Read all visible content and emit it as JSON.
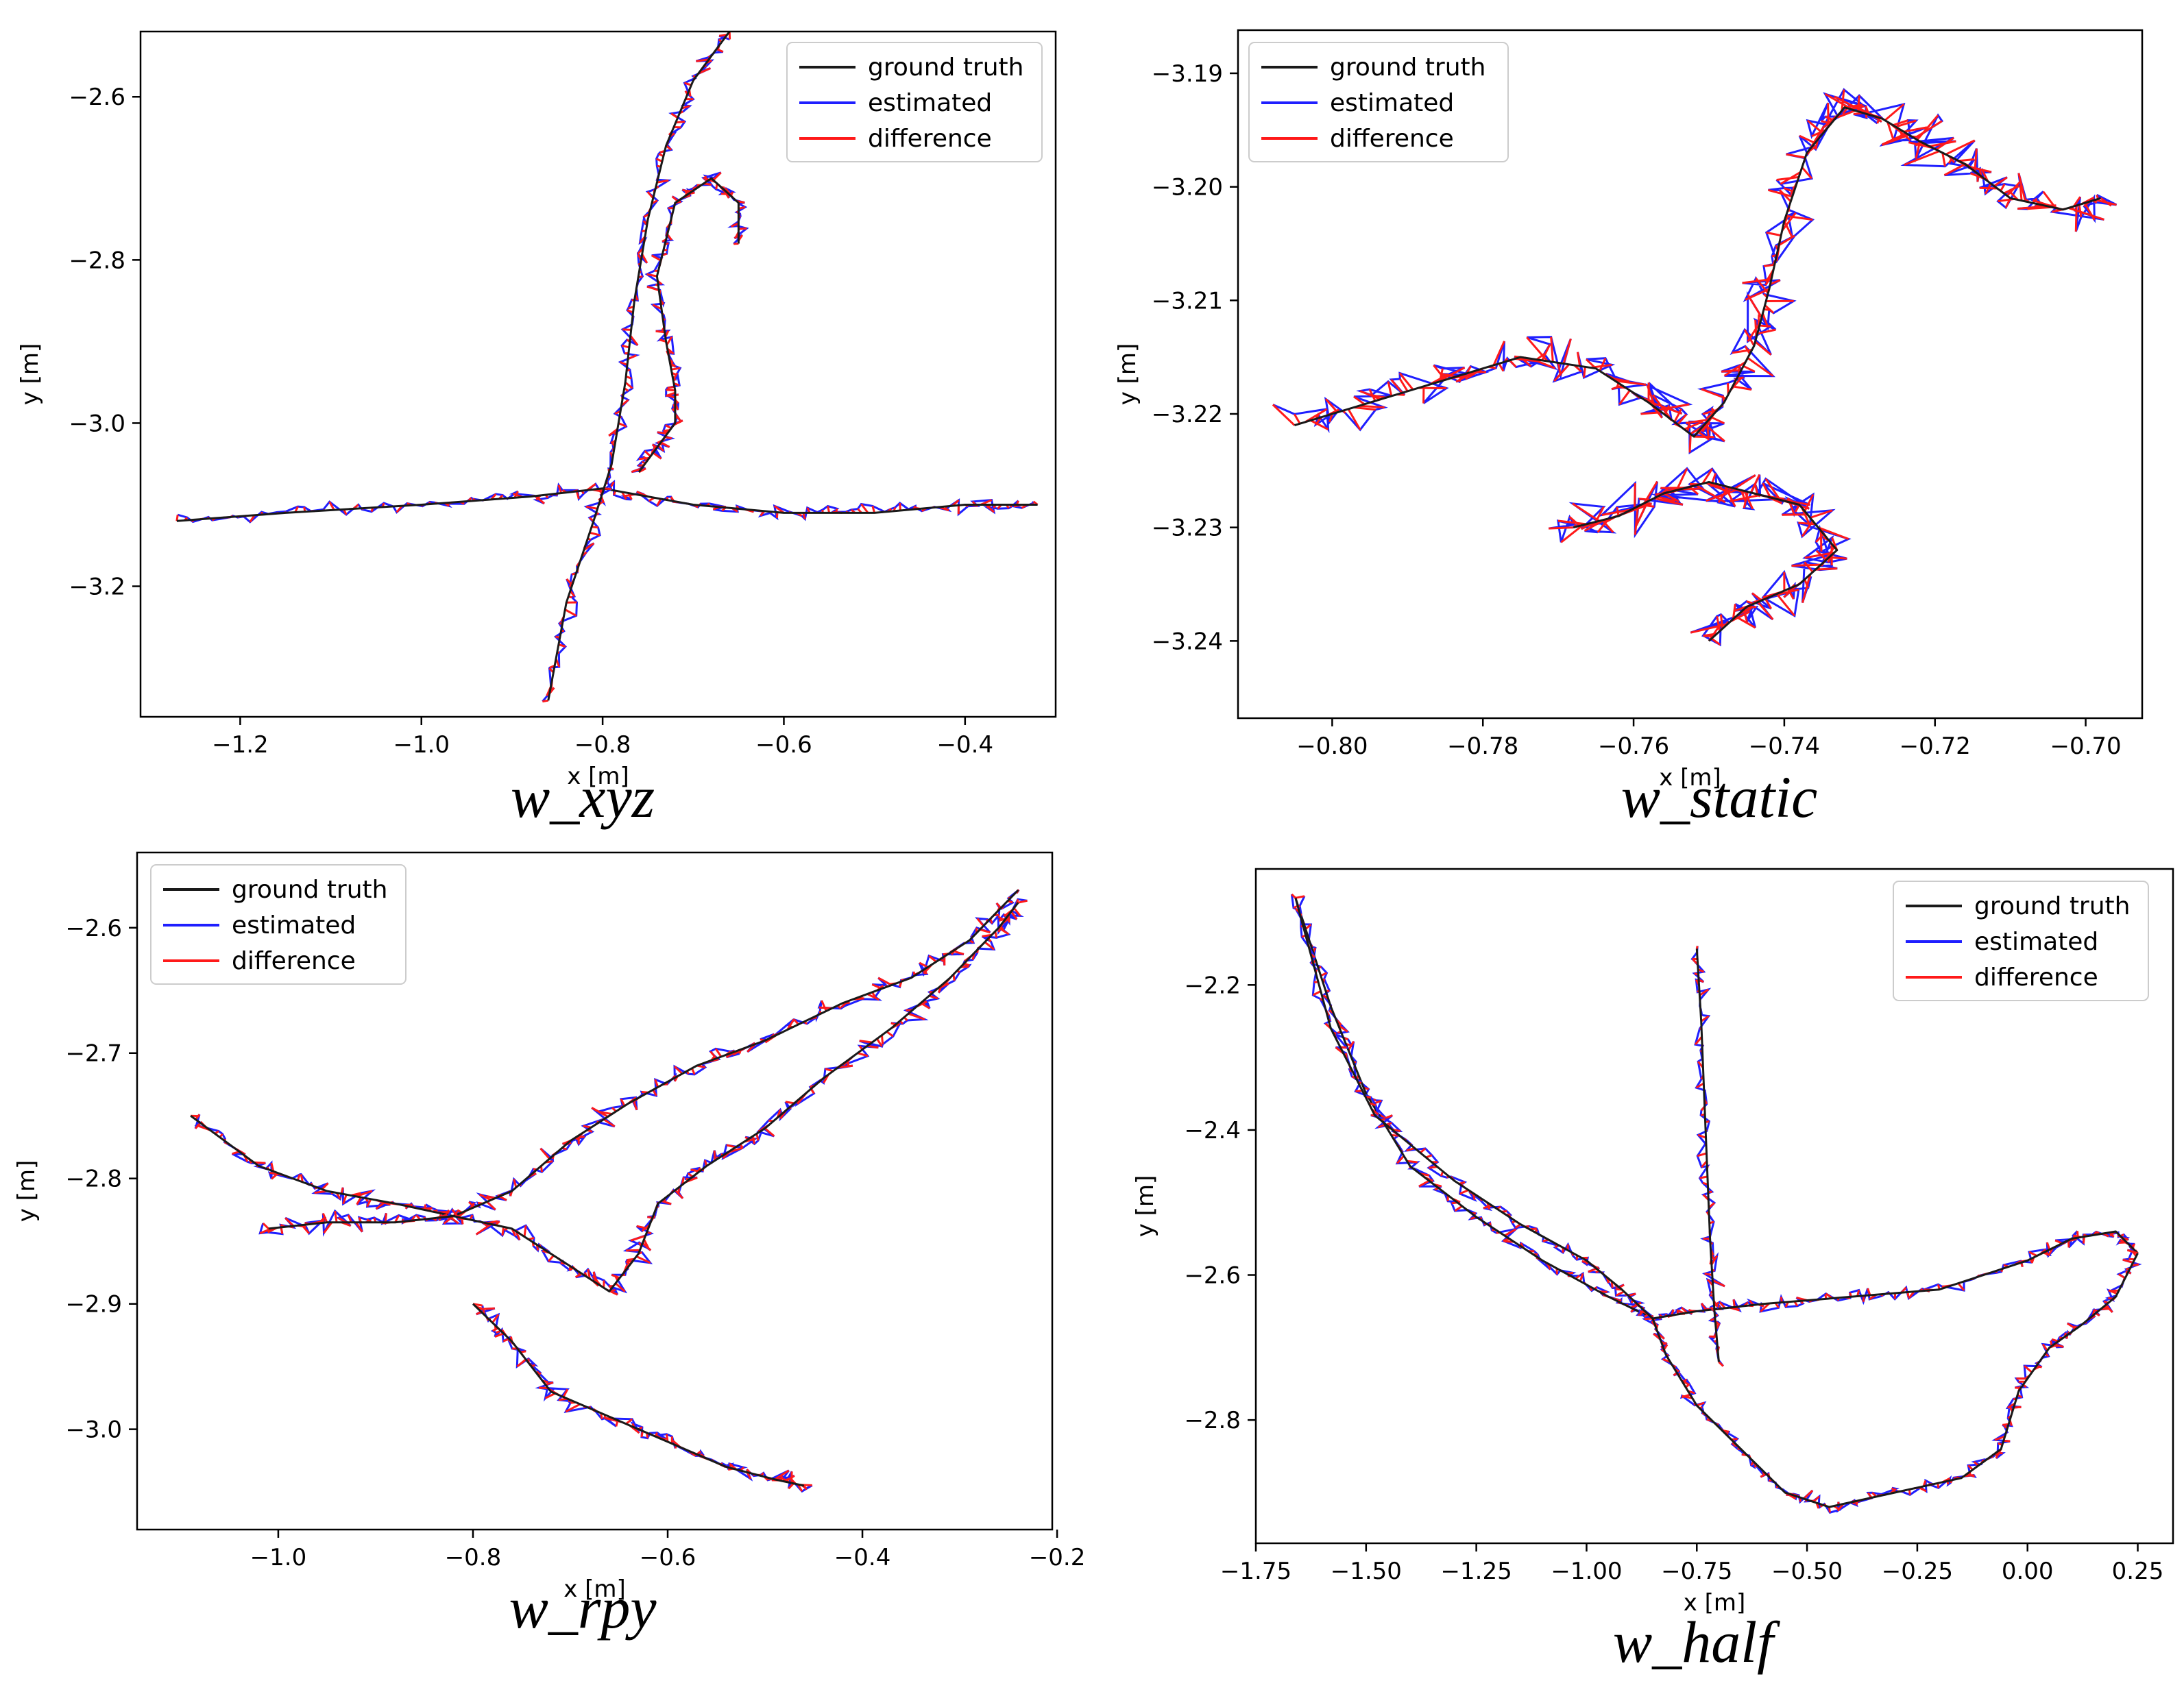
{
  "figure": {
    "legend_entries": [
      {
        "name": "ground truth",
        "color": "#1a1a1a"
      },
      {
        "name": "estimated",
        "color": "#1f1fff"
      },
      {
        "name": "difference",
        "color": "#ff1a1a"
      }
    ]
  },
  "chart_data": [
    {
      "type": "line",
      "id": "xyz",
      "caption": "w_xyz",
      "xlabel": "x [m]",
      "ylabel": "y [m]",
      "xlim": [
        -1.31,
        -0.3
      ],
      "ylim": [
        -3.36,
        -2.52
      ],
      "xticks": [
        {
          "v": -1.2,
          "label": "−1.2"
        },
        {
          "v": -1.0,
          "label": "−1.0"
        },
        {
          "v": -0.8,
          "label": "−0.8"
        },
        {
          "v": -0.6,
          "label": "−0.6"
        },
        {
          "v": -0.4,
          "label": "−0.4"
        }
      ],
      "yticks": [
        {
          "v": -2.6,
          "label": "−2.6"
        },
        {
          "v": -2.8,
          "label": "−2.8"
        },
        {
          "v": -3.0,
          "label": "−3.0"
        },
        {
          "v": -3.2,
          "label": "−3.2"
        }
      ],
      "legend_position": "top-right",
      "noise": 0.018,
      "series": [
        {
          "name": "ground truth",
          "points": [
            [
              -1.27,
              -3.12
            ],
            [
              -1.15,
              -3.11
            ],
            [
              -1.0,
              -3.1
            ],
            [
              -0.88,
              -3.09
            ],
            [
              -0.8,
              -3.08
            ],
            [
              -0.7,
              -3.1
            ],
            [
              -0.6,
              -3.11
            ],
            [
              -0.5,
              -3.11
            ],
            [
              -0.4,
              -3.1
            ],
            [
              -0.32,
              -3.1
            ]
          ]
        },
        {
          "name": "ground truth",
          "points": [
            [
              -0.86,
              -3.34
            ],
            [
              -0.84,
              -3.22
            ],
            [
              -0.81,
              -3.12
            ],
            [
              -0.79,
              -3.05
            ],
            [
              -0.775,
              -2.95
            ],
            [
              -0.765,
              -2.85
            ],
            [
              -0.75,
              -2.75
            ],
            [
              -0.73,
              -2.66
            ],
            [
              -0.7,
              -2.58
            ],
            [
              -0.66,
              -2.52
            ]
          ]
        },
        {
          "name": "ground truth",
          "points": [
            [
              -0.76,
              -3.06
            ],
            [
              -0.74,
              -3.03
            ],
            [
              -0.72,
              -3.0
            ],
            [
              -0.72,
              -2.96
            ],
            [
              -0.73,
              -2.9
            ],
            [
              -0.74,
              -2.82
            ],
            [
              -0.72,
              -2.73
            ],
            [
              -0.68,
              -2.7
            ],
            [
              -0.65,
              -2.73
            ],
            [
              -0.65,
              -2.78
            ]
          ]
        }
      ]
    },
    {
      "type": "line",
      "id": "static",
      "caption": "w_static",
      "xlabel": "x [m]",
      "ylabel": "y [m]",
      "xlim": [
        -0.8125,
        -0.6925
      ],
      "ylim": [
        -3.2468,
        -3.1862
      ],
      "xticks": [
        {
          "v": -0.8,
          "label": "−0.80"
        },
        {
          "v": -0.78,
          "label": "−0.78"
        },
        {
          "v": -0.76,
          "label": "−0.76"
        },
        {
          "v": -0.74,
          "label": "−0.74"
        },
        {
          "v": -0.72,
          "label": "−0.72"
        },
        {
          "v": -0.7,
          "label": "−0.70"
        }
      ],
      "yticks": [
        {
          "v": -3.19,
          "label": "−3.19"
        },
        {
          "v": -3.2,
          "label": "−3.20"
        },
        {
          "v": -3.21,
          "label": "−3.21"
        },
        {
          "v": -3.22,
          "label": "−3.22"
        },
        {
          "v": -3.23,
          "label": "−3.23"
        },
        {
          "v": -3.24,
          "label": "−3.24"
        }
      ],
      "legend_position": "top-left",
      "noise": 0.0065,
      "series": [
        {
          "name": "ground truth",
          "points": [
            [
              -0.805,
              -3.221
            ],
            [
              -0.795,
              -3.219
            ],
            [
              -0.785,
              -3.217
            ],
            [
              -0.775,
              -3.215
            ],
            [
              -0.765,
              -3.216
            ],
            [
              -0.758,
              -3.219
            ],
            [
              -0.752,
              -3.222
            ],
            [
              -0.748,
              -3.219
            ],
            [
              -0.744,
              -3.214
            ],
            [
              -0.742,
              -3.209
            ],
            [
              -0.74,
              -3.203
            ],
            [
              -0.737,
              -3.197
            ],
            [
              -0.732,
              -3.193
            ],
            [
              -0.727,
              -3.194
            ],
            [
              -0.722,
              -3.196
            ],
            [
              -0.716,
              -3.198
            ],
            [
              -0.71,
              -3.201
            ],
            [
              -0.703,
              -3.202
            ],
            [
              -0.698,
              -3.201
            ]
          ]
        },
        {
          "name": "ground truth",
          "points": [
            [
              -0.768,
              -3.23
            ],
            [
              -0.762,
              -3.229
            ],
            [
              -0.756,
              -3.227
            ],
            [
              -0.75,
              -3.226
            ],
            [
              -0.744,
              -3.227
            ],
            [
              -0.738,
              -3.228
            ],
            [
              -0.733,
              -3.232
            ],
            [
              -0.738,
              -3.235
            ],
            [
              -0.745,
              -3.237
            ],
            [
              -0.75,
              -3.24
            ]
          ]
        }
      ]
    },
    {
      "type": "line",
      "id": "rpy",
      "caption": "w_rpy",
      "xlabel": "x [m]",
      "ylabel": "y [m]",
      "xlim": [
        -1.145,
        -0.205
      ],
      "ylim": [
        -3.08,
        -2.54
      ],
      "xticks": [
        {
          "v": -1.0,
          "label": "−1.0"
        },
        {
          "v": -0.8,
          "label": "−0.8"
        },
        {
          "v": -0.6,
          "label": "−0.6"
        },
        {
          "v": -0.4,
          "label": "−0.4"
        },
        {
          "v": -0.2,
          "label": "−0.2"
        }
      ],
      "yticks": [
        {
          "v": -2.6,
          "label": "−2.6"
        },
        {
          "v": -2.7,
          "label": "−2.7"
        },
        {
          "v": -2.8,
          "label": "−2.8"
        },
        {
          "v": -2.9,
          "label": "−2.9"
        },
        {
          "v": -3.0,
          "label": "−3.0"
        }
      ],
      "legend_position": "top-left",
      "noise": 0.022,
      "series": [
        {
          "name": "ground truth",
          "points": [
            [
              -1.09,
              -2.75
            ],
            [
              -1.02,
              -2.79
            ],
            [
              -0.95,
              -2.81
            ],
            [
              -0.88,
              -2.82
            ],
            [
              -0.82,
              -2.83
            ],
            [
              -0.76,
              -2.81
            ],
            [
              -0.7,
              -2.77
            ],
            [
              -0.64,
              -2.74
            ],
            [
              -0.57,
              -2.71
            ],
            [
              -0.5,
              -2.69
            ],
            [
              -0.42,
              -2.66
            ],
            [
              -0.35,
              -2.64
            ],
            [
              -0.29,
              -2.61
            ],
            [
              -0.24,
              -2.57
            ]
          ]
        },
        {
          "name": "ground truth",
          "points": [
            [
              -1.01,
              -2.84
            ],
            [
              -0.95,
              -2.835
            ],
            [
              -0.88,
              -2.835
            ],
            [
              -0.82,
              -2.83
            ],
            [
              -0.76,
              -2.84
            ],
            [
              -0.7,
              -2.87
            ],
            [
              -0.66,
              -2.89
            ],
            [
              -0.63,
              -2.86
            ],
            [
              -0.61,
              -2.82
            ],
            [
              -0.56,
              -2.79
            ],
            [
              -0.5,
              -2.76
            ],
            [
              -0.44,
              -2.72
            ],
            [
              -0.37,
              -2.68
            ],
            [
              -0.31,
              -2.64
            ],
            [
              -0.26,
              -2.6
            ],
            [
              -0.24,
              -2.58
            ]
          ]
        },
        {
          "name": "ground truth",
          "points": [
            [
              -0.8,
              -2.9
            ],
            [
              -0.76,
              -2.93
            ],
            [
              -0.72,
              -2.97
            ],
            [
              -0.66,
              -2.99
            ],
            [
              -0.6,
              -3.01
            ],
            [
              -0.54,
              -3.03
            ],
            [
              -0.49,
              -3.04
            ],
            [
              -0.46,
              -3.045
            ]
          ]
        }
      ]
    },
    {
      "type": "line",
      "id": "half",
      "caption": "w_half",
      "xlabel": "x [m]",
      "ylabel": "y [m]",
      "xlim": [
        -1.75,
        0.33
      ],
      "ylim": [
        -2.97,
        -2.04
      ],
      "xticks": [
        {
          "v": -1.75,
          "label": "−1.75"
        },
        {
          "v": -1.5,
          "label": "−1.50"
        },
        {
          "v": -1.25,
          "label": "−1.25"
        },
        {
          "v": -1.0,
          "label": "−1.00"
        },
        {
          "v": -0.75,
          "label": "−0.75"
        },
        {
          "v": -0.5,
          "label": "−0.50"
        },
        {
          "v": -0.25,
          "label": "−0.25"
        },
        {
          "v": 0.0,
          "label": "0.00"
        },
        {
          "v": 0.25,
          "label": "0.25"
        }
      ],
      "yticks": [
        {
          "v": -2.2,
          "label": "−2.2"
        },
        {
          "v": -2.4,
          "label": "−2.4"
        },
        {
          "v": -2.6,
          "label": "−2.6"
        },
        {
          "v": -2.8,
          "label": "−2.8"
        }
      ],
      "legend_position": "top-right",
      "noise": 0.035,
      "series": [
        {
          "name": "ground truth",
          "points": [
            [
              -1.66,
              -2.08
            ],
            [
              -1.58,
              -2.23
            ],
            [
              -1.5,
              -2.35
            ],
            [
              -1.4,
              -2.45
            ],
            [
              -1.25,
              -2.52
            ],
            [
              -1.1,
              -2.58
            ],
            [
              -0.95,
              -2.63
            ],
            [
              -0.85,
              -2.66
            ],
            [
              -0.75,
              -2.65
            ],
            [
              -0.6,
              -2.64
            ],
            [
              -0.4,
              -2.63
            ],
            [
              -0.2,
              -2.62
            ],
            [
              0.0,
              -2.58
            ],
            [
              0.1,
              -2.55
            ],
            [
              0.2,
              -2.54
            ],
            [
              0.25,
              -2.57
            ]
          ]
        },
        {
          "name": "ground truth",
          "points": [
            [
              0.25,
              -2.57
            ],
            [
              0.2,
              -2.63
            ],
            [
              0.12,
              -2.67
            ],
            [
              0.05,
              -2.7
            ],
            [
              -0.02,
              -2.76
            ],
            [
              -0.06,
              -2.84
            ],
            [
              -0.15,
              -2.88
            ],
            [
              -0.3,
              -2.9
            ],
            [
              -0.45,
              -2.92
            ],
            [
              -0.55,
              -2.9
            ],
            [
              -0.65,
              -2.84
            ],
            [
              -0.75,
              -2.78
            ],
            [
              -0.82,
              -2.71
            ],
            [
              -0.85,
              -2.66
            ],
            [
              -0.92,
              -2.62
            ],
            [
              -1.0,
              -2.58
            ],
            [
              -1.15,
              -2.53
            ],
            [
              -1.3,
              -2.47
            ],
            [
              -1.48,
              -2.38
            ],
            [
              -1.58,
              -2.26
            ],
            [
              -1.66,
              -2.08
            ]
          ]
        },
        {
          "name": "ground truth",
          "points": [
            [
              -0.75,
              -2.15
            ],
            [
              -0.74,
              -2.25
            ],
            [
              -0.73,
              -2.4
            ],
            [
              -0.72,
              -2.55
            ],
            [
              -0.71,
              -2.65
            ],
            [
              -0.7,
              -2.72
            ]
          ]
        }
      ]
    }
  ]
}
